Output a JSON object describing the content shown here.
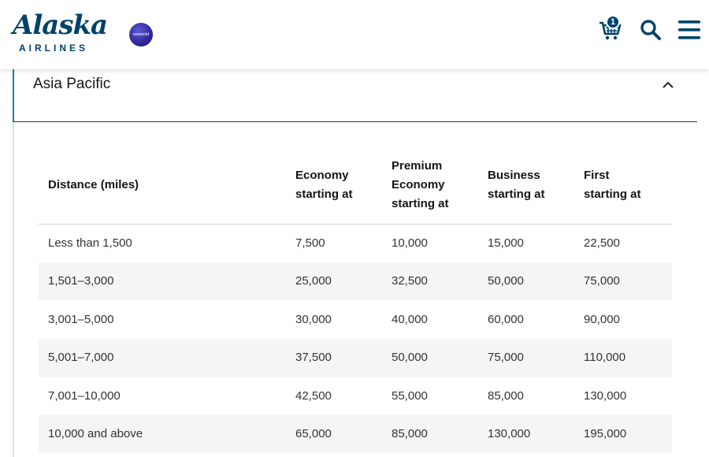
{
  "header": {
    "logo_script": "Alaska",
    "logo_sub": "AIRLINES",
    "partner_logo": "oneworld",
    "cart_count": "1"
  },
  "accordion": {
    "title": "Asia Pacific",
    "expanded": true
  },
  "table": {
    "headers": [
      [
        "Distance (miles)"
      ],
      [
        "Economy",
        "starting at"
      ],
      [
        "Premium",
        "Economy",
        "starting at"
      ],
      [
        "Business",
        "starting at"
      ],
      [
        "First",
        "starting at"
      ]
    ],
    "rows": [
      [
        "Less than 1,500",
        "7,500",
        "10,000",
        "15,000",
        "22,500"
      ],
      [
        "1,501–3,000",
        "25,000",
        "32,500",
        "50,000",
        "75,000"
      ],
      [
        "3,001–5,000",
        "30,000",
        "40,000",
        "60,000",
        "90,000"
      ],
      [
        "5,001–7,000",
        "37,500",
        "50,000",
        "75,000",
        "110,000"
      ],
      [
        "7,001–10,000",
        "42,500",
        "55,000",
        "85,000",
        "130,000"
      ],
      [
        "10,000 and above",
        "65,000",
        "85,000",
        "130,000",
        "195,000"
      ]
    ]
  },
  "icons": {
    "cart": "cart-icon",
    "search": "search-icon",
    "menu": "menu-icon",
    "chevron": "chevron-up-icon"
  },
  "colors": {
    "brand": "#01426a",
    "accent": "#1f7ea3",
    "row_stripe": "#f5f5f5"
  }
}
